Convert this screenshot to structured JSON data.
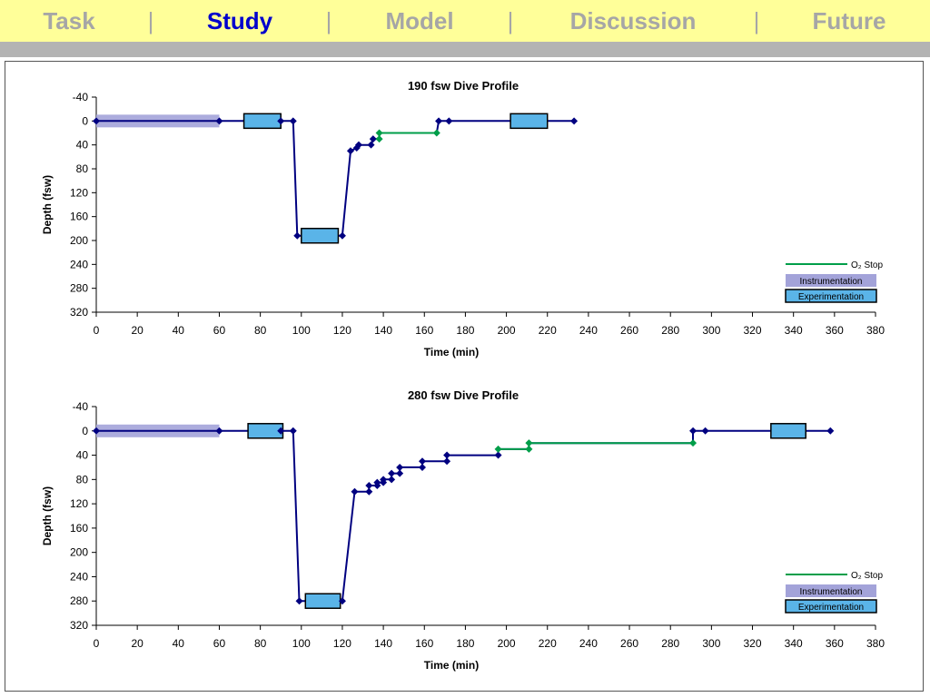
{
  "nav": {
    "items": [
      {
        "label": "Task",
        "active": false
      },
      {
        "label": "Study",
        "active": true
      },
      {
        "label": "Model",
        "active": false
      },
      {
        "label": "Discussion",
        "active": false
      },
      {
        "label": "Future",
        "active": false
      }
    ],
    "separator": "|",
    "colors": {
      "background": "#ffff99",
      "active": "#0000cc",
      "inactive": "#a6a6a6",
      "rule": "#b3b3b3"
    }
  },
  "chart_data": [
    {
      "type": "line",
      "title": "190 fsw Dive Profile",
      "xlabel": "Time (min)",
      "ylabel": "Depth (fsw)",
      "xlim": [
        0,
        380
      ],
      "ylim": [
        -40,
        320
      ],
      "y_inverted": true,
      "xticks": [
        0,
        20,
        40,
        60,
        80,
        100,
        120,
        140,
        160,
        180,
        200,
        220,
        240,
        260,
        280,
        300,
        320,
        340,
        360,
        380
      ],
      "yticks": [
        -40,
        0,
        40,
        80,
        120,
        160,
        200,
        240,
        280,
        320
      ],
      "grid": false,
      "legend_position": "right",
      "series": [
        {
          "id": "profile",
          "color": "#000080",
          "points": [
            [
              0,
              0
            ],
            [
              60,
              0
            ],
            [
              90,
              0
            ],
            [
              96,
              0
            ],
            [
              98,
              192
            ],
            [
              120,
              192
            ],
            [
              124,
              50
            ],
            [
              127,
              45
            ],
            [
              128,
              40
            ],
            [
              134,
              40
            ],
            [
              135,
              30
            ],
            [
              138,
              30
            ],
            [
              138,
              20
            ],
            [
              166,
              20
            ],
            [
              167,
              0
            ],
            [
              172,
              0
            ],
            [
              233,
              0
            ]
          ]
        },
        {
          "id": "o2",
          "name": "O₂ Stop",
          "color": "#009e49",
          "points": [
            [
              138,
              30
            ],
            [
              138,
              20
            ],
            [
              166,
              20
            ]
          ]
        }
      ],
      "instrumentation": [
        [
          0,
          60
        ]
      ],
      "experimentation": [
        {
          "x": [
            72,
            90
          ],
          "y": 0
        },
        {
          "x": [
            100,
            118
          ],
          "y": 192
        },
        {
          "x": [
            202,
            220
          ],
          "y": 0
        }
      ],
      "legend": {
        "o2": "O₂ Stop",
        "instrumentation": "Instrumentation",
        "experimentation": "Experimentation"
      }
    },
    {
      "type": "line",
      "title": "280 fsw Dive Profile",
      "xlabel": "Time (min)",
      "ylabel": "Depth (fsw)",
      "xlim": [
        0,
        380
      ],
      "ylim": [
        -40,
        320
      ],
      "y_inverted": true,
      "xticks": [
        0,
        20,
        40,
        60,
        80,
        100,
        120,
        140,
        160,
        180,
        200,
        220,
        240,
        260,
        280,
        300,
        320,
        340,
        360,
        380
      ],
      "yticks": [
        -40,
        0,
        40,
        80,
        120,
        160,
        200,
        240,
        280,
        320
      ],
      "grid": false,
      "legend_position": "right",
      "series": [
        {
          "id": "profile",
          "color": "#000080",
          "points": [
            [
              0,
              0
            ],
            [
              60,
              0
            ],
            [
              90,
              0
            ],
            [
              96,
              0
            ],
            [
              99,
              280
            ],
            [
              120,
              280
            ],
            [
              126,
              100
            ],
            [
              133,
              100
            ],
            [
              133,
              90
            ],
            [
              137,
              90
            ],
            [
              137,
              85
            ],
            [
              140,
              85
            ],
            [
              140,
              80
            ],
            [
              144,
              80
            ],
            [
              144,
              70
            ],
            [
              148,
              70
            ],
            [
              148,
              60
            ],
            [
              159,
              60
            ],
            [
              159,
              50
            ],
            [
              171,
              50
            ],
            [
              171,
              40
            ],
            [
              196,
              40
            ],
            [
              196,
              30
            ],
            [
              211,
              30
            ],
            [
              211,
              20
            ],
            [
              291,
              20
            ],
            [
              291,
              0
            ],
            [
              297,
              0
            ],
            [
              358,
              0
            ]
          ]
        },
        {
          "id": "o2",
          "name": "O₂ Stop",
          "color": "#009e49",
          "points": [
            [
              196,
              30
            ],
            [
              211,
              30
            ],
            [
              211,
              20
            ],
            [
              291,
              20
            ]
          ]
        }
      ],
      "instrumentation": [
        [
          0,
          60
        ]
      ],
      "experimentation": [
        {
          "x": [
            74,
            91
          ],
          "y": 0
        },
        {
          "x": [
            102,
            119
          ],
          "y": 280
        },
        {
          "x": [
            329,
            346
          ],
          "y": 0
        }
      ],
      "legend": {
        "o2": "O₂ Stop",
        "instrumentation": "Instrumentation",
        "experimentation": "Experimentation"
      }
    }
  ]
}
